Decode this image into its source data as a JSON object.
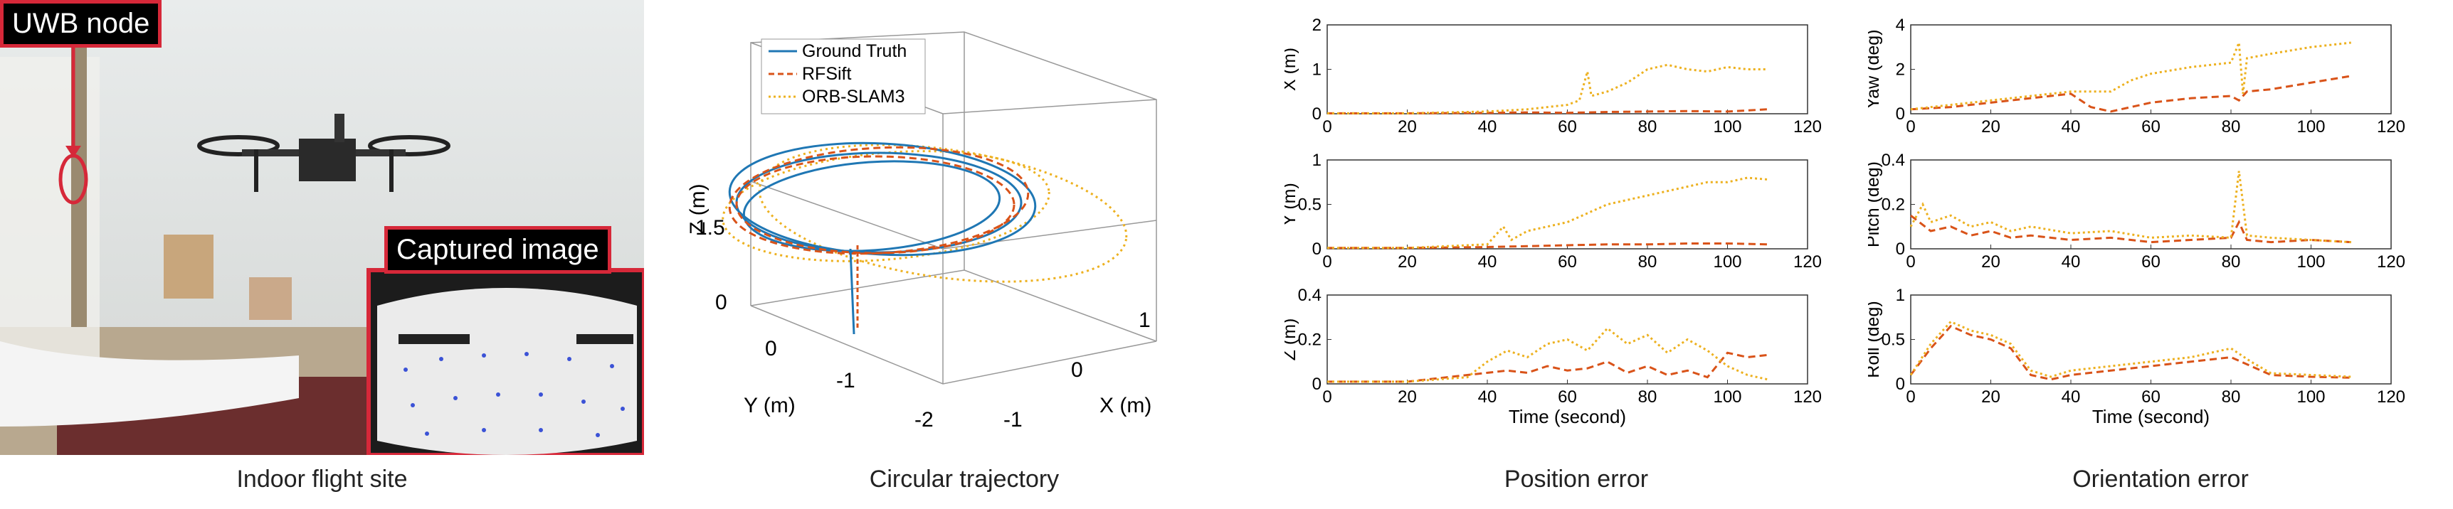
{
  "photo": {
    "uwb_label": "UWB node",
    "captured_label": "Captured image",
    "caption": "Indoor flight site"
  },
  "trajectory": {
    "caption": "Circular trajectory",
    "legend": [
      "Ground Truth",
      "RFSift",
      "ORB-SLAM3"
    ],
    "zlabel": "Z (m)",
    "ylabel": "Y (m)",
    "xlabel": "X (m)",
    "zticks": [
      "0",
      "1.5"
    ],
    "yticks": [
      "0",
      "-1",
      "-2"
    ],
    "xticks": [
      "-1",
      "0",
      "1"
    ]
  },
  "position": {
    "caption": "Position error",
    "xlabel": "Time (second)"
  },
  "orientation": {
    "caption": "Orientation error",
    "xlabel": "Time (second)"
  },
  "colors": {
    "gt": "#1f77b4",
    "rfsift": "#d95319",
    "orb": "#edb120",
    "frame": "#d62839"
  },
  "chart_data": [
    {
      "type": "line",
      "ylabel": "X (m)",
      "xlim": [
        0,
        120
      ],
      "ylim": [
        0,
        2
      ],
      "yticks": [
        0,
        1,
        2
      ],
      "xticks": [
        0,
        20,
        40,
        60,
        80,
        100,
        120
      ],
      "series": [
        {
          "name": "RFSift",
          "x": [
            0,
            20,
            40,
            50,
            60,
            70,
            80,
            90,
            100,
            110
          ],
          "y": [
            0.01,
            0.01,
            0.02,
            0.03,
            0.02,
            0.04,
            0.05,
            0.06,
            0.05,
            0.1
          ]
        },
        {
          "name": "ORB-SLAM3",
          "x": [
            0,
            20,
            40,
            50,
            60,
            63,
            65,
            66,
            70,
            75,
            80,
            85,
            90,
            95,
            100,
            105,
            110
          ],
          "y": [
            0.01,
            0.01,
            0.05,
            0.1,
            0.2,
            0.3,
            0.95,
            0.4,
            0.5,
            0.7,
            1.0,
            1.1,
            1.0,
            0.95,
            1.05,
            1.0,
            1.0
          ]
        }
      ]
    },
    {
      "type": "line",
      "ylabel": "Y (m)",
      "xlim": [
        0,
        120
      ],
      "ylim": [
        0,
        1
      ],
      "yticks": [
        0,
        0.5,
        1
      ],
      "xticks": [
        0,
        20,
        40,
        60,
        80,
        100,
        120
      ],
      "series": [
        {
          "name": "RFSift",
          "x": [
            0,
            20,
            40,
            50,
            60,
            70,
            80,
            90,
            100,
            110
          ],
          "y": [
            0.01,
            0.01,
            0.02,
            0.03,
            0.04,
            0.05,
            0.05,
            0.06,
            0.06,
            0.05
          ]
        },
        {
          "name": "ORB-SLAM3",
          "x": [
            0,
            20,
            40,
            44,
            46,
            50,
            55,
            60,
            65,
            70,
            75,
            80,
            85,
            90,
            95,
            100,
            105,
            110
          ],
          "y": [
            0.01,
            0.01,
            0.05,
            0.25,
            0.1,
            0.2,
            0.25,
            0.3,
            0.4,
            0.5,
            0.55,
            0.6,
            0.65,
            0.7,
            0.75,
            0.75,
            0.8,
            0.78
          ]
        }
      ]
    },
    {
      "type": "line",
      "ylabel": "Z (m)",
      "xlim": [
        0,
        120
      ],
      "ylim": [
        0,
        0.4
      ],
      "yticks": [
        0,
        0.2,
        0.4
      ],
      "xticks": [
        0,
        20,
        40,
        60,
        80,
        100,
        120
      ],
      "series": [
        {
          "name": "RFSift",
          "x": [
            0,
            20,
            40,
            45,
            50,
            55,
            60,
            65,
            70,
            75,
            80,
            85,
            90,
            95,
            100,
            105,
            110
          ],
          "y": [
            0.01,
            0.01,
            0.05,
            0.06,
            0.05,
            0.08,
            0.06,
            0.07,
            0.1,
            0.05,
            0.08,
            0.04,
            0.06,
            0.03,
            0.14,
            0.12,
            0.13
          ]
        },
        {
          "name": "ORB-SLAM3",
          "x": [
            0,
            20,
            35,
            40,
            45,
            50,
            55,
            60,
            65,
            70,
            75,
            80,
            85,
            90,
            95,
            100,
            105,
            110
          ],
          "y": [
            0.01,
            0.01,
            0.03,
            0.1,
            0.15,
            0.12,
            0.18,
            0.2,
            0.15,
            0.25,
            0.18,
            0.22,
            0.14,
            0.2,
            0.15,
            0.08,
            0.04,
            0.02
          ]
        }
      ]
    },
    {
      "type": "line",
      "ylabel": "Yaw (deg)",
      "xlim": [
        0,
        120
      ],
      "ylim": [
        0,
        4
      ],
      "yticks": [
        0,
        2,
        4
      ],
      "xticks": [
        0,
        20,
        40,
        60,
        80,
        100,
        120
      ],
      "series": [
        {
          "name": "RFSift",
          "x": [
            0,
            10,
            20,
            30,
            40,
            45,
            50,
            55,
            60,
            70,
            80,
            82,
            84,
            90,
            100,
            110
          ],
          "y": [
            0.2,
            0.3,
            0.5,
            0.7,
            0.9,
            0.3,
            0.1,
            0.3,
            0.5,
            0.7,
            0.8,
            0.6,
            1.0,
            1.1,
            1.4,
            1.7
          ]
        },
        {
          "name": "ORB-SLAM3",
          "x": [
            0,
            10,
            20,
            30,
            40,
            45,
            50,
            55,
            60,
            70,
            80,
            82,
            83,
            84,
            90,
            100,
            110
          ],
          "y": [
            0.2,
            0.4,
            0.6,
            0.8,
            1.0,
            1.0,
            1.0,
            1.5,
            1.8,
            2.1,
            2.3,
            3.2,
            0.9,
            2.5,
            2.7,
            3.0,
            3.2
          ]
        }
      ]
    },
    {
      "type": "line",
      "ylabel": "Pitch (deg)",
      "xlim": [
        0,
        120
      ],
      "ylim": [
        0,
        0.4
      ],
      "yticks": [
        0,
        0.2,
        0.4
      ],
      "xticks": [
        0,
        20,
        40,
        60,
        80,
        100,
        120
      ],
      "series": [
        {
          "name": "RFSift",
          "x": [
            0,
            5,
            10,
            15,
            20,
            25,
            30,
            40,
            50,
            60,
            70,
            80,
            82,
            84,
            90,
            100,
            110
          ],
          "y": [
            0.15,
            0.08,
            0.1,
            0.06,
            0.08,
            0.05,
            0.06,
            0.04,
            0.05,
            0.03,
            0.04,
            0.05,
            0.12,
            0.04,
            0.03,
            0.04,
            0.03
          ]
        },
        {
          "name": "ORB-SLAM3",
          "x": [
            0,
            3,
            5,
            10,
            15,
            20,
            25,
            30,
            40,
            50,
            60,
            70,
            80,
            82,
            84,
            90,
            100,
            110
          ],
          "y": [
            0.1,
            0.2,
            0.12,
            0.15,
            0.1,
            0.12,
            0.08,
            0.1,
            0.07,
            0.08,
            0.05,
            0.06,
            0.05,
            0.35,
            0.06,
            0.05,
            0.04,
            0.03
          ]
        }
      ]
    },
    {
      "type": "line",
      "ylabel": "Roll (deg)",
      "xlim": [
        0,
        120
      ],
      "ylim": [
        0,
        1
      ],
      "yticks": [
        0,
        0.5,
        1
      ],
      "xticks": [
        0,
        20,
        40,
        60,
        80,
        100,
        120
      ],
      "series": [
        {
          "name": "RFSift",
          "x": [
            0,
            5,
            10,
            15,
            20,
            25,
            30,
            35,
            40,
            50,
            60,
            70,
            80,
            85,
            90,
            100,
            110
          ],
          "y": [
            0.1,
            0.4,
            0.65,
            0.55,
            0.5,
            0.4,
            0.1,
            0.05,
            0.1,
            0.15,
            0.2,
            0.25,
            0.3,
            0.2,
            0.1,
            0.08,
            0.07
          ]
        },
        {
          "name": "ORB-SLAM3",
          "x": [
            0,
            5,
            10,
            15,
            20,
            25,
            30,
            35,
            40,
            50,
            60,
            70,
            80,
            85,
            90,
            100,
            110
          ],
          "y": [
            0.1,
            0.45,
            0.7,
            0.6,
            0.55,
            0.45,
            0.15,
            0.08,
            0.15,
            0.2,
            0.25,
            0.3,
            0.4,
            0.25,
            0.12,
            0.1,
            0.08
          ]
        }
      ]
    }
  ]
}
